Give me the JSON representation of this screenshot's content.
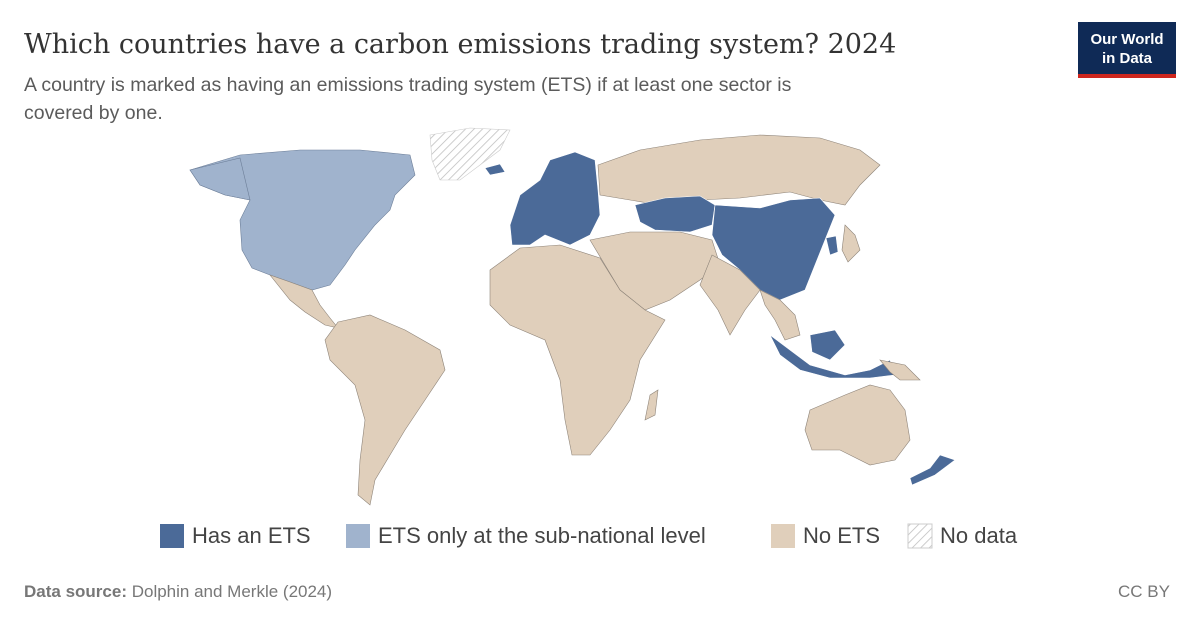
{
  "header": {
    "title": "Which countries have a carbon emissions trading system? 2024",
    "subtitle_lines": [
      "A country is marked as having an emissions trading system (ETS) if at least one sector is",
      "covered by one."
    ],
    "logo_lines": [
      "Our World",
      "in Data"
    ]
  },
  "legend": [
    "Has an ETS",
    "ETS only at the sub-national level",
    "No ETS",
    "No data"
  ],
  "footer": {
    "source_label": "Data source:",
    "source": "Dolphin and Merkle (2024)",
    "license": "CC BY"
  }
}
